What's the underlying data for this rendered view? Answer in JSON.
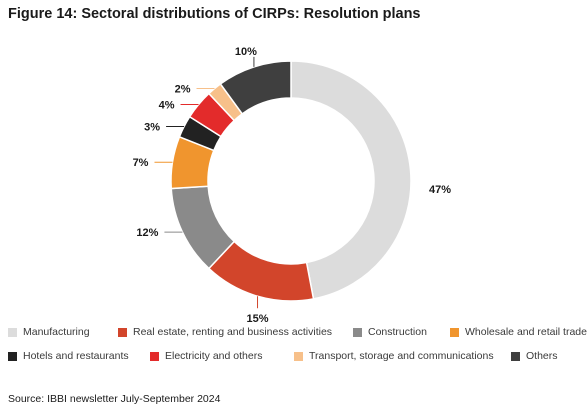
{
  "title": "Figure 14: Sectoral distributions of CIRPs: Resolution plans",
  "source": "Source: IBBI newsletter July-September 2024",
  "chart_data": {
    "type": "pie",
    "subtype": "donut",
    "title": "Figure 14: Sectoral distributions of CIRPs: Resolution plans",
    "legend_position": "bottom",
    "slices": [
      {
        "name": "Manufacturing",
        "value": 47,
        "label": "47%",
        "color": "#dcdcdc"
      },
      {
        "name": "Real estate, renting and business activities",
        "value": 15,
        "label": "15%",
        "color": "#d2452b"
      },
      {
        "name": "Construction",
        "value": 12,
        "label": "12%",
        "color": "#8a8a8a"
      },
      {
        "name": "Wholesale and retail trade",
        "value": 7,
        "label": "7%",
        "color": "#f0952e"
      },
      {
        "name": "Hotels and restaurants",
        "value": 3,
        "label": "3%",
        "color": "#222222"
      },
      {
        "name": "Electricity and others",
        "value": 4,
        "label": "4%",
        "color": "#e32b2b"
      },
      {
        "name": "Transport, storage and communications",
        "value": 2,
        "label": "2%",
        "color": "#f7c08a"
      },
      {
        "name": "Others",
        "value": 10,
        "label": "10%",
        "color": "#3f3f3f"
      }
    ]
  }
}
